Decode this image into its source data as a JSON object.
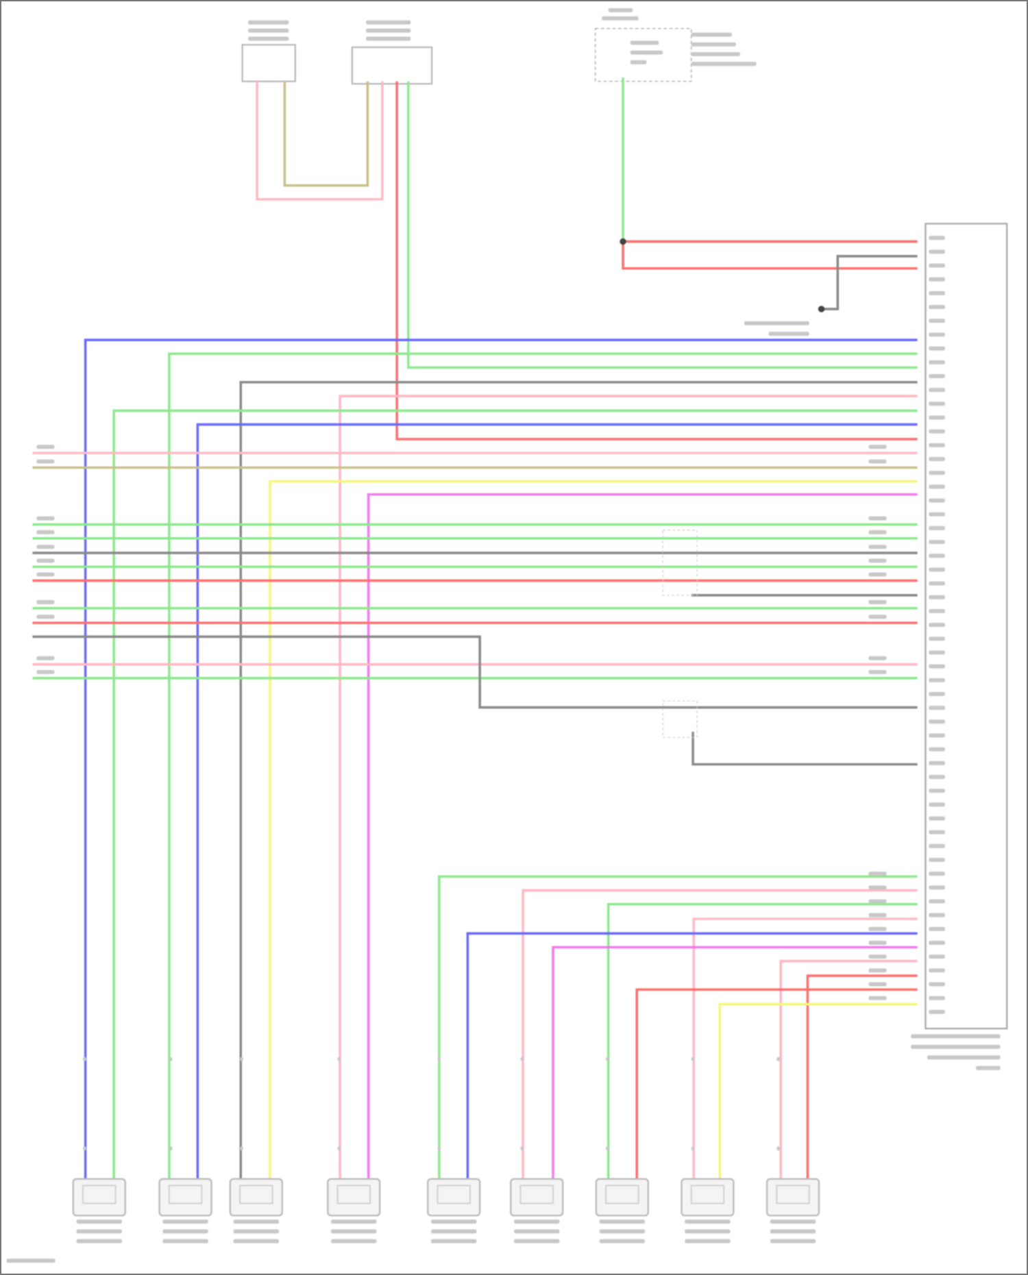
{
  "diagram": {
    "type": "wiring-diagram",
    "wire_colors": {
      "blue": "#6a6aff",
      "green": "#8ee88e",
      "red": "#ff6f6f",
      "pink": "#ffb8c4",
      "gray": "#8a8a8a",
      "yellow": "#f5f57a",
      "magenta": "#f07af0",
      "tan": "#c9c18a"
    },
    "speaker_count": 9
  }
}
